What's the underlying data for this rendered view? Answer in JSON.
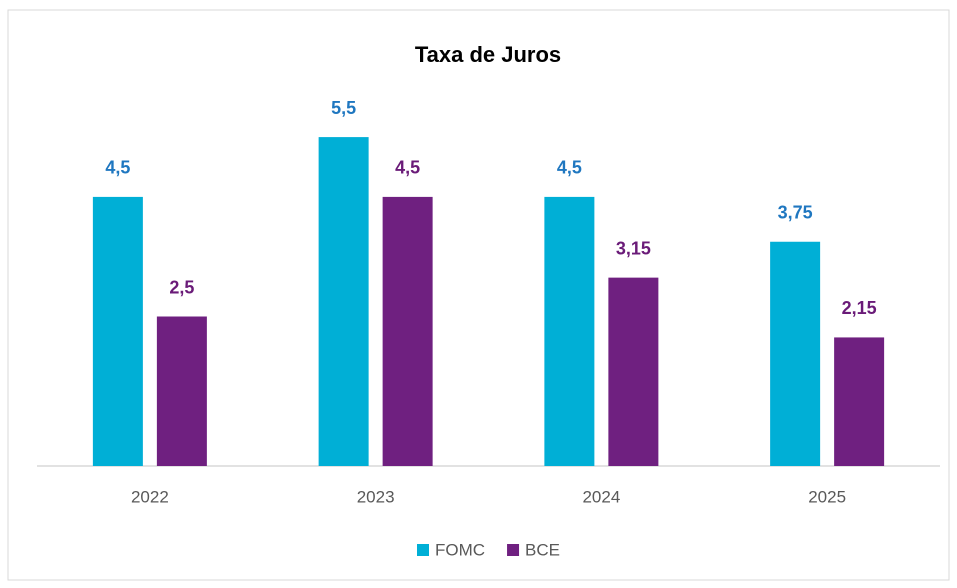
{
  "chart_data": {
    "type": "bar",
    "title": "Taxa de Juros",
    "categories": [
      "2022",
      "2023",
      "2024",
      "2025"
    ],
    "series": [
      {
        "name": "FOMC",
        "color": "#00afd6",
        "label_color": "#1f77c0",
        "values": [
          4.5,
          5.5,
          4.5,
          3.75
        ],
        "value_labels": [
          "4,5",
          "5,5",
          "4,5",
          "3,75"
        ]
      },
      {
        "name": "BCE",
        "color": "#6f2080",
        "label_color": "#6a1b78",
        "values": [
          2.5,
          4.5,
          3.15,
          2.15
        ],
        "value_labels": [
          "2,5",
          "4,5",
          "3,15",
          "2,15"
        ]
      }
    ],
    "ylim": [
      0,
      6
    ],
    "legend": "bottom"
  }
}
